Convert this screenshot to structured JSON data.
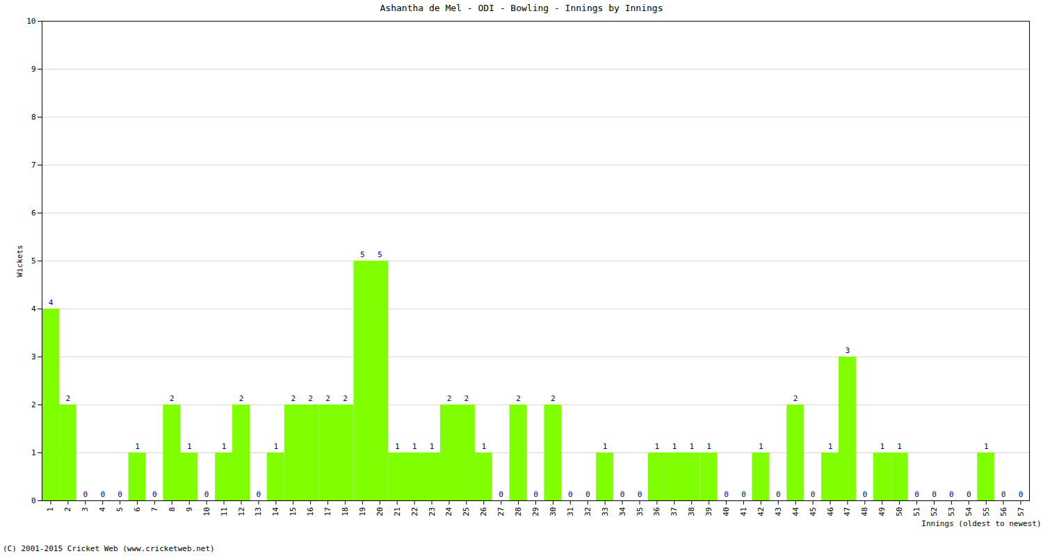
{
  "chart_data": {
    "type": "bar",
    "title": "Ashantha de Mel - ODI - Bowling - Innings by Innings",
    "x_label": "Innings (oldest to newest)",
    "y_label": "Wickets",
    "caption": "(C) 2001-2015 Cricket Web (www.cricketweb.net)",
    "categories": [
      "1",
      "2",
      "3",
      "4",
      "5",
      "6",
      "7",
      "8",
      "9",
      "10",
      "11",
      "12",
      "13",
      "14",
      "15",
      "16",
      "17",
      "18",
      "19",
      "20",
      "21",
      "22",
      "23",
      "24",
      "25",
      "26",
      "27",
      "28",
      "29",
      "30",
      "31",
      "32",
      "33",
      "34",
      "35",
      "36",
      "37",
      "38",
      "39",
      "40",
      "41",
      "42",
      "43",
      "44",
      "45",
      "46",
      "47",
      "48",
      "49",
      "50",
      "51",
      "52",
      "53",
      "54",
      "55",
      "56",
      "57"
    ],
    "values": [
      4,
      2,
      0,
      0,
      0,
      1,
      0,
      2,
      1,
      0,
      1,
      2,
      0,
      1,
      2,
      2,
      2,
      2,
      5,
      5,
      1,
      1,
      1,
      2,
      2,
      1,
      0,
      2,
      0,
      2,
      0,
      0,
      1,
      0,
      0,
      1,
      1,
      1,
      1,
      0,
      0,
      1,
      0,
      2,
      0,
      1,
      3,
      0,
      1,
      1,
      0,
      0,
      0,
      0,
      1,
      0,
      0
    ],
    "color": "#7fff00",
    "ylim": [
      0,
      10
    ],
    "yticks": [
      0,
      1,
      2,
      3,
      4,
      5,
      6,
      7,
      8,
      9,
      10
    ],
    "grid": true,
    "data_labels": true
  }
}
